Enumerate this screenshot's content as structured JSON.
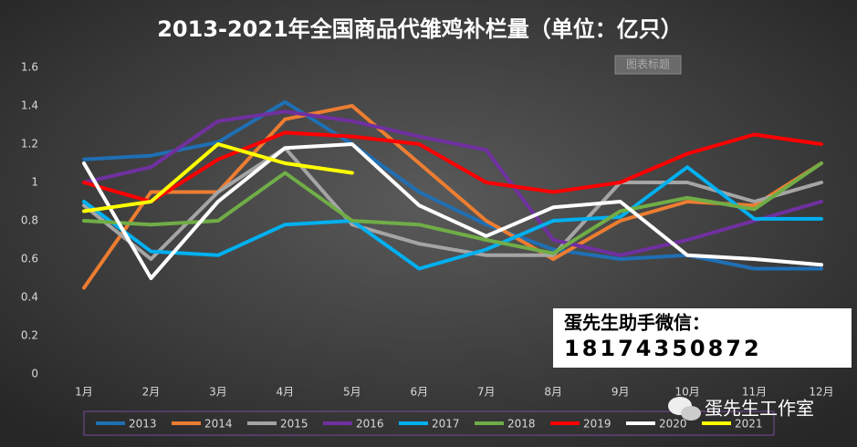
{
  "chart_data": {
    "type": "line",
    "title": "2013-2021年全国商品代雏鸡补栏量（单位：亿只）",
    "annotations": [
      "图表标题",
      "蛋先生助手微信：",
      "18174350872",
      "蛋先生工作室"
    ],
    "categories": [
      "1月",
      "2月",
      "3月",
      "4月",
      "5月",
      "6月",
      "7月",
      "8月",
      "9月",
      "10月",
      "11月",
      "12月"
    ],
    "ylim": [
      0,
      1.6
    ],
    "yticks": [
      0,
      0.2,
      0.4,
      0.6,
      0.8,
      1,
      1.2,
      1.4,
      1.6
    ],
    "grid": false,
    "legend": "bottom",
    "series": [
      {
        "name": "2013",
        "color": "#1f6fb4",
        "values": [
          1.12,
          1.14,
          1.21,
          1.42,
          1.2,
          0.95,
          0.78,
          0.65,
          0.6,
          0.62,
          0.55,
          0.55
        ]
      },
      {
        "name": "2014",
        "color": "#ed7d31",
        "values": [
          0.45,
          0.95,
          0.95,
          1.33,
          1.4,
          1.1,
          0.8,
          0.6,
          0.8,
          0.9,
          0.88,
          1.1
        ]
      },
      {
        "name": "2015",
        "color": "#a5a5a5",
        "values": [
          0.88,
          0.6,
          0.95,
          1.18,
          0.78,
          0.68,
          0.62,
          0.62,
          1.0,
          1.0,
          0.9,
          1.0
        ]
      },
      {
        "name": "2016",
        "color": "#7030a0",
        "values": [
          1.0,
          1.08,
          1.32,
          1.37,
          1.32,
          1.24,
          1.17,
          0.7,
          0.62,
          0.7,
          0.8,
          0.9
        ]
      },
      {
        "name": "2017",
        "color": "#00b0f0",
        "values": [
          0.9,
          0.64,
          0.62,
          0.78,
          0.8,
          0.55,
          0.65,
          0.8,
          0.82,
          1.08,
          0.81,
          0.81
        ]
      },
      {
        "name": "2018",
        "color": "#70ad47",
        "values": [
          0.8,
          0.78,
          0.8,
          1.05,
          0.8,
          0.78,
          0.7,
          0.63,
          0.85,
          0.92,
          0.86,
          1.1
        ]
      },
      {
        "name": "2019",
        "color": "#ff0000",
        "values": [
          1.0,
          0.9,
          1.12,
          1.26,
          1.24,
          1.2,
          1.0,
          0.95,
          1.0,
          1.15,
          1.25,
          1.2
        ]
      },
      {
        "name": "2020",
        "color": "#ffffff",
        "values": [
          1.1,
          0.5,
          0.9,
          1.18,
          1.2,
          0.88,
          0.72,
          0.87,
          0.9,
          0.62,
          0.6,
          0.57
        ]
      },
      {
        "name": "2021",
        "color": "#ffff00",
        "values": [
          0.85,
          0.9,
          1.2,
          1.1,
          1.05,
          null,
          null,
          null,
          null,
          null,
          null,
          null
        ]
      }
    ]
  }
}
